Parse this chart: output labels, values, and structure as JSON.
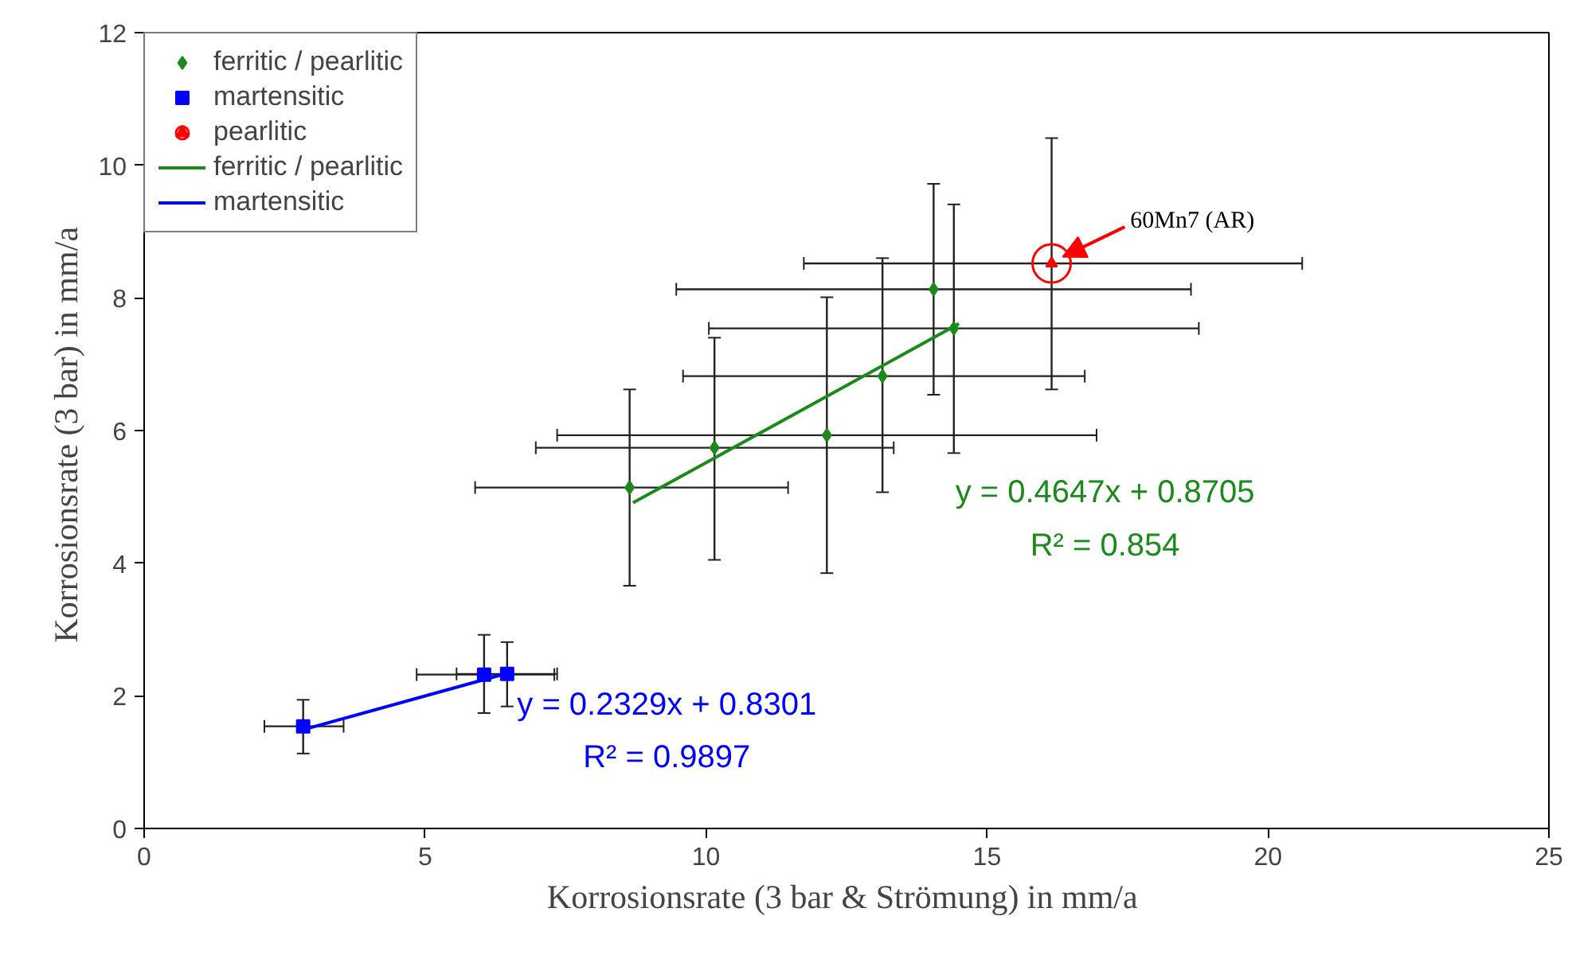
{
  "chart_data": {
    "type": "scatter",
    "xlabel": "Korrosionsrate (3 bar & Strömung)  in mm/a",
    "ylabel": "Korrosionsrate (3 bar)  in mm/a",
    "xlim": [
      0,
      25
    ],
    "ylim": [
      0,
      12
    ],
    "xticks": [
      0,
      5,
      10,
      15,
      20,
      25
    ],
    "yticks": [
      0,
      2,
      4,
      6,
      8,
      10,
      12
    ],
    "grid": false,
    "legend": "top left",
    "series": [
      {
        "name": "ferritic / pearlitic",
        "marker": "diamond",
        "color": "#1a8a1a",
        "x": [
          8.64,
          10.15,
          12.15,
          13.14,
          14.05,
          14.41
        ],
        "values": [
          5.14,
          5.74,
          5.93,
          6.82,
          8.13,
          7.54
        ],
        "errors": [
          1.48,
          [
            4.05,
            7.4
          ],
          [
            3.85,
            8.01
          ],
          [
            5.07,
            8.6
          ],
          [
            6.54,
            9.72
          ],
          [
            5.66,
            9.41
          ]
        ],
        "xerrors": [
          [
            5.89,
            11.46
          ],
          [
            6.97,
            13.34
          ],
          [
            7.35,
            16.95
          ],
          [
            9.59,
            16.74
          ],
          4.58,
          4.36
        ]
      },
      {
        "name": "martensitic",
        "marker": "square",
        "color": "#0000ff",
        "x": [
          2.83,
          6.05,
          6.46
        ],
        "values": [
          1.54,
          2.32,
          2.33
        ],
        "errors": [
          [
            1.13,
            1.94
          ],
          [
            1.74,
            2.92
          ],
          [
            1.84,
            2.81
          ]
        ],
        "xerrors": [
          [
            2.14,
            3.55
          ],
          [
            4.85,
            7.3
          ],
          [
            5.56,
            7.35
          ]
        ]
      },
      {
        "name": "pearlitic",
        "marker": "circle",
        "color": "#ff0000",
        "x": [
          16.15
        ],
        "values": [
          8.52
        ],
        "errors": [
          [
            6.62,
            10.41
          ]
        ],
        "xerrors": [
          [
            11.74,
            20.61
          ]
        ]
      },
      {
        "name": "ferritic / pearlitic",
        "type": "line",
        "line_style": "solid",
        "color": "#1a8a1a",
        "x": [
          8.7,
          14.5
        ],
        "values": [
          4.91,
          7.61
        ]
      },
      {
        "name": "martensitic",
        "type": "line",
        "line_style": "solid",
        "color": "#0000ff",
        "x": [
          2.83,
          6.46
        ],
        "values": [
          1.49,
          2.34
        ]
      }
    ],
    "annotations": [
      "y = 0.4647x + 0.8705",
      "R² = 0.854",
      "y = 0.2329x + 0.8301",
      "R² = 0.9897",
      {
        "text": "60Mn7 (AR)",
        "x": 16.15,
        "y": 8.52
      }
    ]
  }
}
